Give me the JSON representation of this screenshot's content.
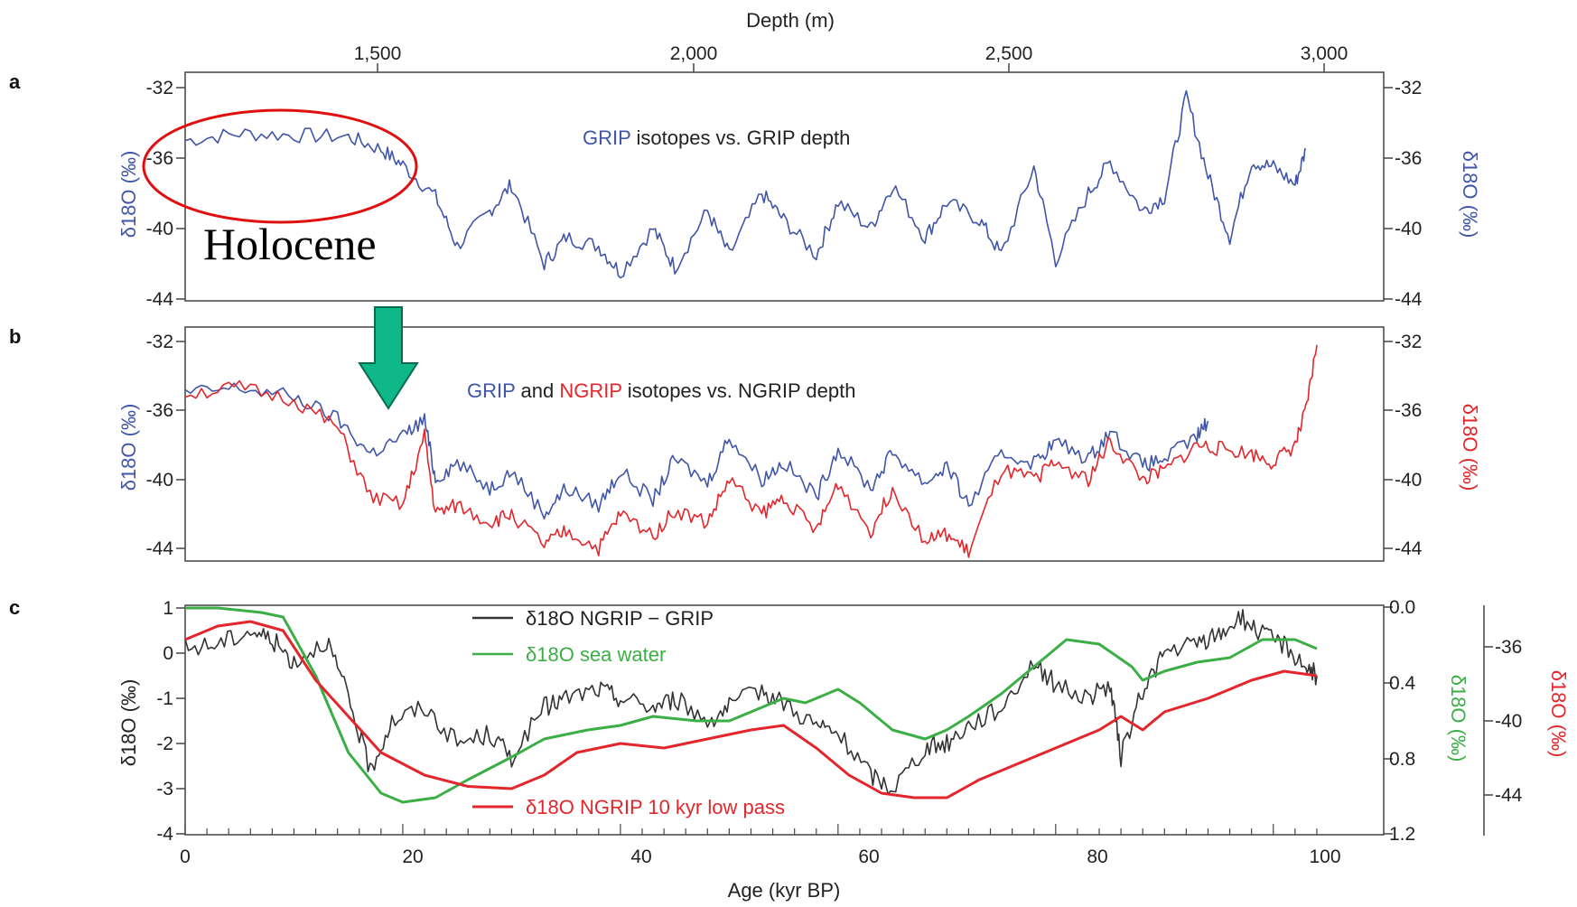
{
  "colors": {
    "grip": "#4055a8",
    "ngrip": "#e3262b",
    "seawater": "#3cae46",
    "diff": "#333333",
    "highlight": "#e01010",
    "arrow": "#10b788"
  },
  "annotations": {
    "holocene": "Holocene"
  },
  "depth_axis": {
    "title": "Depth (m)",
    "ticks": [
      "1,500",
      "2,000",
      "2,500",
      "3,000"
    ]
  },
  "age_axis": {
    "title": "Age (kyr BP)",
    "ticks": [
      "0",
      "20",
      "40",
      "60",
      "80",
      "100"
    ]
  },
  "chart_data": [
    {
      "panel": "a",
      "type": "line",
      "title_parts": [
        "GRIP",
        " isotopes vs. GRIP depth"
      ],
      "ylabel_left": "δ18O (‰)",
      "ylabel_right": "δ18O (‰)",
      "y_ticks": [
        "-32",
        "-36",
        "-40",
        "-44"
      ],
      "ylim": [
        -44,
        -31
      ],
      "xlim": [
        0,
        105
      ],
      "series": [
        {
          "color_key": "grip",
          "x": [
            0,
            5,
            10,
            15,
            18,
            20,
            23,
            25,
            28,
            30,
            33,
            35,
            38,
            40,
            43,
            45,
            48,
            50,
            53,
            55,
            58,
            60,
            63,
            65,
            68,
            70,
            73,
            75,
            78,
            80,
            83,
            85,
            88,
            90,
            92,
            94,
            96,
            98,
            100,
            102,
            103
          ],
          "y": [
            -35,
            -34.6,
            -34.7,
            -34.8,
            -35.5,
            -36.4,
            -38.2,
            -41,
            -39,
            -37.5,
            -42,
            -40.5,
            -41,
            -42.5,
            -40,
            -42.2,
            -39,
            -41.5,
            -38,
            -39.5,
            -41.5,
            -38.5,
            -40,
            -37.5,
            -40.5,
            -38.5,
            -39.5,
            -41.5,
            -36.5,
            -41.8,
            -38,
            -36.2,
            -39,
            -38.2,
            -32.5,
            -37,
            -40.5,
            -36.2,
            -36.5,
            -37.5,
            -35.5
          ]
        }
      ]
    },
    {
      "panel": "b",
      "type": "line",
      "title_parts": [
        "GRIP",
        " and ",
        "NGRIP",
        " isotopes vs. NGRIP depth"
      ],
      "ylabel_left": "δ18O (‰)",
      "ylabel_right": "δ18O (‰)",
      "y_ticks": [
        "-32",
        "-36",
        "-40",
        "-44"
      ],
      "ylim": [
        -45,
        -32
      ],
      "xlim": [
        0,
        105
      ],
      "series": [
        {
          "color_key": "grip",
          "x": [
            0,
            5,
            10,
            14,
            17,
            20,
            22,
            23,
            25,
            28,
            30,
            33,
            35,
            38,
            40,
            43,
            45,
            48,
            50,
            53,
            55,
            58,
            60,
            63,
            65,
            68,
            70,
            72,
            75,
            78,
            80,
            83,
            85,
            88,
            90,
            93,
            94
          ],
          "y": [
            -35,
            -34.7,
            -35.2,
            -36.5,
            -38.5,
            -37.5,
            -36.5,
            -40,
            -39,
            -40.5,
            -39.5,
            -42,
            -40.5,
            -41.5,
            -39.5,
            -41.2,
            -38.8,
            -40.2,
            -37.5,
            -40,
            -39,
            -41,
            -38.2,
            -40.5,
            -38.4,
            -40.2,
            -39.2,
            -41.5,
            -38.5,
            -39,
            -37.8,
            -38.8,
            -37.2,
            -39.2,
            -38.8,
            -37.5,
            -36.6
          ]
        },
        {
          "color_key": "ngrip",
          "x": [
            0,
            5,
            10,
            14,
            17,
            20,
            22,
            23,
            25,
            28,
            30,
            33,
            35,
            38,
            40,
            43,
            45,
            48,
            50,
            53,
            55,
            58,
            60,
            63,
            65,
            68,
            70,
            72,
            75,
            78,
            80,
            83,
            85,
            88,
            90,
            93,
            95,
            98,
            100,
            102,
            103,
            104
          ],
          "y": [
            -35,
            -34.7,
            -35.4,
            -37,
            -41,
            -41.5,
            -37.5,
            -42,
            -41.5,
            -42.5,
            -42,
            -43.8,
            -43,
            -44,
            -42,
            -43.2,
            -41.8,
            -42.5,
            -40,
            -42,
            -41,
            -43,
            -40.2,
            -43,
            -40.5,
            -43.5,
            -43.2,
            -44.2,
            -39.5,
            -40,
            -39,
            -40,
            -37.8,
            -40,
            -39.5,
            -38,
            -38.2,
            -38.5,
            -39,
            -38,
            -36,
            -32.2
          ]
        }
      ]
    },
    {
      "panel": "c",
      "type": "line",
      "xlabel": "Age (kyr BP)",
      "ylabel_left": "δ18O (‰)",
      "ylabel_right_green": "δ18O (‰)",
      "ylabel_right_red": "δ18O (‰)",
      "y_ticks_left": [
        "1",
        "0",
        "-1",
        "-2",
        "-3",
        "-4"
      ],
      "y_ticks_right_green": [
        "0.0",
        "0.4",
        "0.8",
        "1.2"
      ],
      "y_ticks_right_red": [
        "-36",
        "-40",
        "-44"
      ],
      "ylim": [
        -4,
        1
      ],
      "xlim": [
        0,
        105
      ],
      "legend": [
        "δ18O NGRIP − GRIP",
        "δ18O sea water",
        "δ18O NGRIP 10 kyr low pass"
      ],
      "series": [
        {
          "name": "δ18O NGRIP − GRIP",
          "color_key": "diff",
          "x": [
            0,
            3,
            6,
            8,
            10,
            13,
            15,
            17,
            19,
            22,
            25,
            28,
            30,
            33,
            35,
            38,
            40,
            43,
            45,
            48,
            50,
            53,
            55,
            58,
            60,
            63,
            65,
            68,
            70,
            72,
            75,
            78,
            80,
            83,
            85,
            86,
            88,
            90,
            93,
            95,
            97,
            99,
            101,
            103,
            104
          ],
          "y": [
            0.1,
            0.2,
            0.5,
            0.3,
            -0.2,
            0.3,
            -1,
            -2.6,
            -1.5,
            -1.2,
            -2,
            -1.8,
            -2.3,
            -1.2,
            -1,
            -0.8,
            -1,
            -1.2,
            -1,
            -1.5,
            -1.2,
            -0.8,
            -1.1,
            -1.6,
            -1.8,
            -2.7,
            -3,
            -2.1,
            -2,
            -1.6,
            -1.2,
            -0.2,
            -0.7,
            -1,
            -0.7,
            -2.3,
            -0.8,
            0,
            0.2,
            0.4,
            0.8,
            0.4,
            0.2,
            -0.3,
            -0.5
          ]
        },
        {
          "name": "δ18O sea water",
          "color_key": "seawater",
          "x": [
            0,
            3,
            7,
            9,
            12,
            15,
            18,
            20,
            23,
            26,
            30,
            33,
            37,
            40,
            43,
            47,
            50,
            52,
            55,
            57,
            60,
            62,
            65,
            68,
            70,
            72,
            75,
            78,
            81,
            84,
            87,
            88,
            90,
            93,
            96,
            99,
            102,
            104
          ],
          "y": [
            1,
            1,
            0.9,
            0.8,
            -0.5,
            -2.2,
            -3.1,
            -3.3,
            -3.2,
            -2.8,
            -2.3,
            -1.9,
            -1.7,
            -1.6,
            -1.4,
            -1.5,
            -1.5,
            -1.3,
            -1,
            -1.1,
            -0.8,
            -1.1,
            -1.7,
            -1.9,
            -1.7,
            -1.4,
            -0.9,
            -0.3,
            0.3,
            0.2,
            -0.3,
            -0.6,
            -0.4,
            -0.2,
            -0.1,
            0.3,
            0.3,
            0.1
          ]
        },
        {
          "name": "δ18O NGRIP 10 kyr low pass",
          "color_key": "ngrip",
          "x": [
            0,
            3,
            6,
            9,
            12,
            15,
            18,
            22,
            26,
            30,
            33,
            36,
            40,
            44,
            48,
            52,
            55,
            58,
            61,
            64,
            67,
            70,
            73,
            76,
            80,
            84,
            86,
            88,
            90,
            94,
            98,
            101,
            104
          ],
          "y": [
            0.3,
            0.6,
            0.7,
            0.5,
            -0.6,
            -1.4,
            -2.2,
            -2.7,
            -2.95,
            -3,
            -2.7,
            -2.2,
            -2,
            -2.1,
            -1.9,
            -1.7,
            -1.6,
            -2.1,
            -2.7,
            -3.1,
            -3.2,
            -3.2,
            -2.8,
            -2.5,
            -2.1,
            -1.7,
            -1.4,
            -1.7,
            -1.3,
            -1,
            -0.6,
            -0.4,
            -0.5
          ]
        }
      ]
    }
  ]
}
